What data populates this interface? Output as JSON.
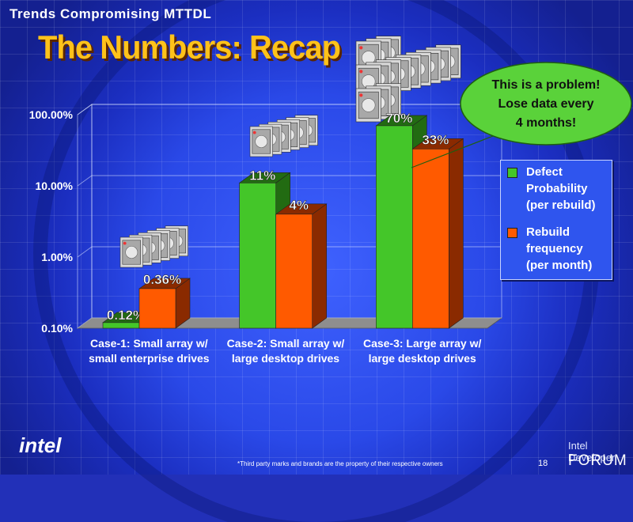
{
  "slide": {
    "subtitle": "Trends Compromising MTTDL",
    "title": "The Numbers: Recap",
    "callout": [
      "This is a problem!",
      "Lose data every",
      "4 months!"
    ],
    "footnote": "*Third party marks and brands are the property of their respective owners",
    "page_number": "18",
    "logo_text": "intel",
    "forum_line1": "Intel Developer",
    "forum_line2": "FORUM"
  },
  "colors": {
    "defect": "#44c629",
    "defect_dark": "#226b12",
    "rebuild": "#ff5a00",
    "rebuild_dark": "#8a2a00",
    "title": "#ffc21a"
  },
  "chart_data": {
    "type": "bar",
    "scale": "log",
    "ylim": [
      0.001,
      1
    ],
    "yticks": [
      "0.10%",
      "1.00%",
      "10.00%",
      "100.00%"
    ],
    "categories": [
      [
        "Case-1: Small array w/",
        "small enterprise drives"
      ],
      [
        "Case-2: Small array w/",
        "large  desktop drives"
      ],
      [
        "Case-3: Large array w/",
        "large  desktop drives"
      ]
    ],
    "series": [
      {
        "name": "Defect Probability (per rebuild)",
        "values": [
          0.0012,
          0.11,
          0.7
        ],
        "labels": [
          "0.12%",
          "11%",
          "70%"
        ]
      },
      {
        "name": "Rebuild frequency (per month)",
        "values": [
          0.0036,
          0.04,
          0.33
        ],
        "labels": [
          "0.36%",
          "4%",
          "33%"
        ]
      }
    ],
    "legend_lines": [
      [
        "Defect",
        "Probability",
        "(per rebuild)"
      ],
      [
        "Rebuild",
        "frequency",
        "(per month)"
      ]
    ],
    "legend_position": "right",
    "grid": true,
    "chart_style": "3d"
  }
}
